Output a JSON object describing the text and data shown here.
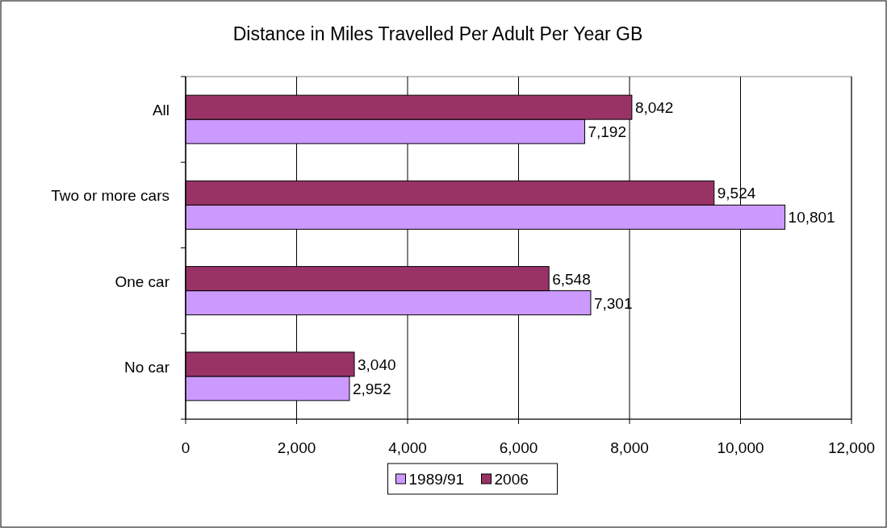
{
  "chart_data": {
    "type": "bar",
    "orientation": "horizontal",
    "title": "Distance in Miles Travelled Per Adult Per Year GB",
    "categories": [
      "All",
      "Two or more cars",
      "One car",
      "No car"
    ],
    "series": [
      {
        "name": "1989/91",
        "color": "#cc99ff",
        "values": [
          7192,
          10801,
          7301,
          2952
        ],
        "value_labels": [
          "7,192",
          "10,801",
          "7,301",
          "2,952"
        ]
      },
      {
        "name": "2006",
        "color": "#993366",
        "values": [
          8042,
          9524,
          6548,
          3040
        ],
        "value_labels": [
          "8,042",
          "9,524",
          "6,548",
          "3,040"
        ]
      }
    ],
    "xlim": [
      0,
      12000
    ],
    "xticks": [
      {
        "value": 0,
        "label": "0"
      },
      {
        "value": 2000,
        "label": "2,000"
      },
      {
        "value": 4000,
        "label": "4,000"
      },
      {
        "value": 6000,
        "label": "6,000"
      },
      {
        "value": 8000,
        "label": "8,000"
      },
      {
        "value": 10000,
        "label": "10,000"
      },
      {
        "value": 12000,
        "label": "12,000"
      }
    ],
    "grid": "x",
    "legend": "bottom"
  }
}
